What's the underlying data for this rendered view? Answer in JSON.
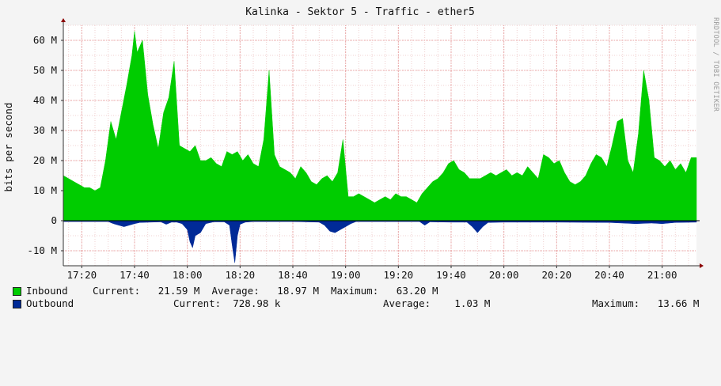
{
  "chart_data": {
    "type": "area",
    "title": "Kalinka - Sektor 5 - Traffic - ether5",
    "ylabel": "bits per second",
    "xlabel": "",
    "credit": "RRDTOOL / TOBI OETIKER",
    "ylim": [
      -15000000,
      65000000
    ],
    "xlim": [
      "17:13",
      "21:13"
    ],
    "grid": true,
    "y_ticks": [
      {
        "value": -10000000,
        "label": "-10 M"
      },
      {
        "value": 0,
        "label": "0"
      },
      {
        "value": 10000000,
        "label": "10 M"
      },
      {
        "value": 20000000,
        "label": "20 M"
      },
      {
        "value": 30000000,
        "label": "30 M"
      },
      {
        "value": 40000000,
        "label": "40 M"
      },
      {
        "value": 50000000,
        "label": "50 M"
      },
      {
        "value": 60000000,
        "label": "60 M"
      }
    ],
    "x_ticks": [
      "17:20",
      "17:40",
      "18:00",
      "18:20",
      "18:40",
      "19:00",
      "19:20",
      "19:40",
      "20:00",
      "20:20",
      "20:40",
      "21:00"
    ],
    "colors": {
      "inbound": "#00cc00",
      "outbound": "#002a97",
      "grid_major": "#e8a0a0",
      "grid_minor": "#f0d0d0"
    },
    "series": [
      {
        "name": "Inbound",
        "x": [
          "17:13",
          "17:15",
          "17:17",
          "17:19",
          "17:21",
          "17:23",
          "17:25",
          "17:27",
          "17:29",
          "17:31",
          "17:33",
          "17:35",
          "17:37",
          "17:39",
          "17:40",
          "17:41",
          "17:43",
          "17:45",
          "17:47",
          "17:49",
          "17:51",
          "17:53",
          "17:55",
          "17:57",
          "17:59",
          "18:01",
          "18:03",
          "18:05",
          "18:07",
          "18:09",
          "18:11",
          "18:13",
          "18:15",
          "18:17",
          "18:19",
          "18:21",
          "18:23",
          "18:25",
          "18:27",
          "18:29",
          "18:31",
          "18:33",
          "18:35",
          "18:37",
          "18:39",
          "18:41",
          "18:43",
          "18:45",
          "18:47",
          "18:49",
          "18:51",
          "18:53",
          "18:55",
          "18:57",
          "18:59",
          "19:01",
          "19:03",
          "19:05",
          "19:07",
          "19:09",
          "19:11",
          "19:13",
          "19:15",
          "19:17",
          "19:19",
          "19:21",
          "19:23",
          "19:25",
          "19:27",
          "19:29",
          "19:31",
          "19:33",
          "19:35",
          "19:37",
          "19:39",
          "19:41",
          "19:43",
          "19:45",
          "19:47",
          "19:49",
          "19:51",
          "19:53",
          "19:55",
          "19:57",
          "19:59",
          "20:01",
          "20:03",
          "20:05",
          "20:07",
          "20:09",
          "20:11",
          "20:13",
          "20:15",
          "20:17",
          "20:19",
          "20:21",
          "20:23",
          "20:25",
          "20:27",
          "20:29",
          "20:31",
          "20:33",
          "20:35",
          "20:37",
          "20:39",
          "20:41",
          "20:43",
          "20:45",
          "20:47",
          "20:49",
          "20:51",
          "20:53",
          "20:55",
          "20:57",
          "20:59",
          "21:01",
          "21:03",
          "21:05",
          "21:07",
          "21:09",
          "21:11",
          "21:13"
        ],
        "values": [
          15,
          14,
          13,
          12,
          11,
          11,
          10,
          11,
          20,
          33,
          27,
          36,
          45,
          55,
          63,
          56,
          60,
          42,
          32,
          24,
          36,
          41,
          53,
          25,
          24,
          23,
          25,
          20,
          20,
          21,
          19,
          18,
          23,
          22,
          23,
          20,
          22,
          19,
          18,
          27,
          50,
          22,
          18,
          17,
          16,
          14,
          18,
          16,
          13,
          12,
          14,
          15,
          13,
          16,
          27,
          8,
          8,
          9,
          8,
          7,
          6,
          7,
          8,
          7,
          9,
          8,
          8,
          7,
          6,
          9,
          11,
          13,
          14,
          16,
          19,
          20,
          17,
          16,
          14,
          14,
          14,
          15,
          16,
          15,
          16,
          17,
          15,
          16,
          15,
          18,
          16,
          14,
          22,
          21,
          19,
          20,
          16,
          13,
          12,
          13,
          15,
          19,
          22,
          21,
          18,
          25,
          33,
          34,
          20,
          16,
          29,
          50,
          40,
          21,
          20,
          18,
          20,
          17,
          19,
          16,
          21,
          21
        ]
      },
      {
        "name": "Outbound",
        "x": [
          "17:13",
          "17:30",
          "17:32",
          "17:34",
          "17:36",
          "17:38",
          "17:40",
          "17:42",
          "17:50",
          "17:52",
          "17:54",
          "17:56",
          "17:58",
          "18:00",
          "18:01",
          "18:02",
          "18:03",
          "18:05",
          "18:07",
          "18:10",
          "18:14",
          "18:16",
          "18:17",
          "18:18",
          "18:19",
          "18:20",
          "18:22",
          "18:25",
          "18:30",
          "18:40",
          "18:50",
          "18:52",
          "18:54",
          "18:56",
          "18:58",
          "19:00",
          "19:02",
          "19:04",
          "19:10",
          "19:20",
          "19:28",
          "19:30",
          "19:32",
          "19:40",
          "19:46",
          "19:48",
          "19:50",
          "19:52",
          "19:54",
          "20:00",
          "20:20",
          "20:40",
          "20:50",
          "20:56",
          "21:00",
          "21:05",
          "21:13"
        ],
        "values": [
          -0.3,
          -0.3,
          -1,
          -1.5,
          -2,
          -1.5,
          -1,
          -0.6,
          -0.4,
          -1.2,
          -0.5,
          -0.5,
          -1,
          -3,
          -7,
          -9,
          -5,
          -4,
          -1,
          -0.4,
          -0.4,
          -1.5,
          -8,
          -14,
          -5,
          -1.2,
          -0.5,
          -0.3,
          -0.3,
          -0.3,
          -0.5,
          -1.5,
          -3.5,
          -4,
          -3,
          -2,
          -1,
          -0.3,
          -0.3,
          -0.3,
          -0.3,
          -1.5,
          -0.4,
          -0.5,
          -0.5,
          -2,
          -4,
          -2,
          -0.6,
          -0.5,
          -0.5,
          -0.6,
          -1,
          -0.8,
          -1,
          -0.6,
          -0.5
        ]
      }
    ]
  },
  "legend": {
    "inbound_label": "Inbound",
    "inbound_stats": "Current:   21.59 M  Average:   18.97 M  Maximum:   63.20 M",
    "outbound_label": "Outbound",
    "outbound_current": "Current:  728.98 k",
    "outbound_average": "Average:    1.03 M",
    "outbound_maximum": "Maximum:   13.66 M"
  }
}
